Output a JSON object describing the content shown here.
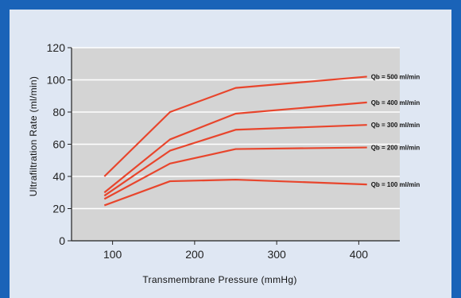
{
  "chart_data": {
    "type": "line",
    "title": "",
    "xlabel": "Transmembrane Pressure (mmHg)",
    "ylabel": "Ultrafiltration Rate (ml/min)",
    "xlim": [
      50,
      450
    ],
    "ylim": [
      0,
      120
    ],
    "xticks": [
      100,
      200,
      300,
      400
    ],
    "yticks": [
      0,
      20,
      40,
      60,
      80,
      100,
      120
    ],
    "grid": true,
    "colors": {
      "line": "#e8452c",
      "plot_bg": "#d4d4d4",
      "grid": "#ffffff",
      "frame": "#1a63b8",
      "panel": "#dfe7f3"
    },
    "series": [
      {
        "name": "Qb = 500 ml/min",
        "x": [
          90,
          170,
          250,
          410
        ],
        "y": [
          40,
          80,
          95,
          102
        ]
      },
      {
        "name": "Qb = 400 ml/min",
        "x": [
          90,
          170,
          250,
          410
        ],
        "y": [
          30,
          63,
          79,
          86
        ]
      },
      {
        "name": "Qb = 300 ml/min",
        "x": [
          90,
          170,
          250,
          410
        ],
        "y": [
          28,
          56,
          69,
          72
        ]
      },
      {
        "name": "Qb = 200 ml/min",
        "x": [
          90,
          170,
          250,
          410
        ],
        "y": [
          26,
          48,
          57,
          58
        ]
      },
      {
        "name": "Qb = 100 ml/min",
        "x": [
          90,
          170,
          250,
          410
        ],
        "y": [
          22,
          37,
          38,
          35
        ]
      }
    ]
  }
}
